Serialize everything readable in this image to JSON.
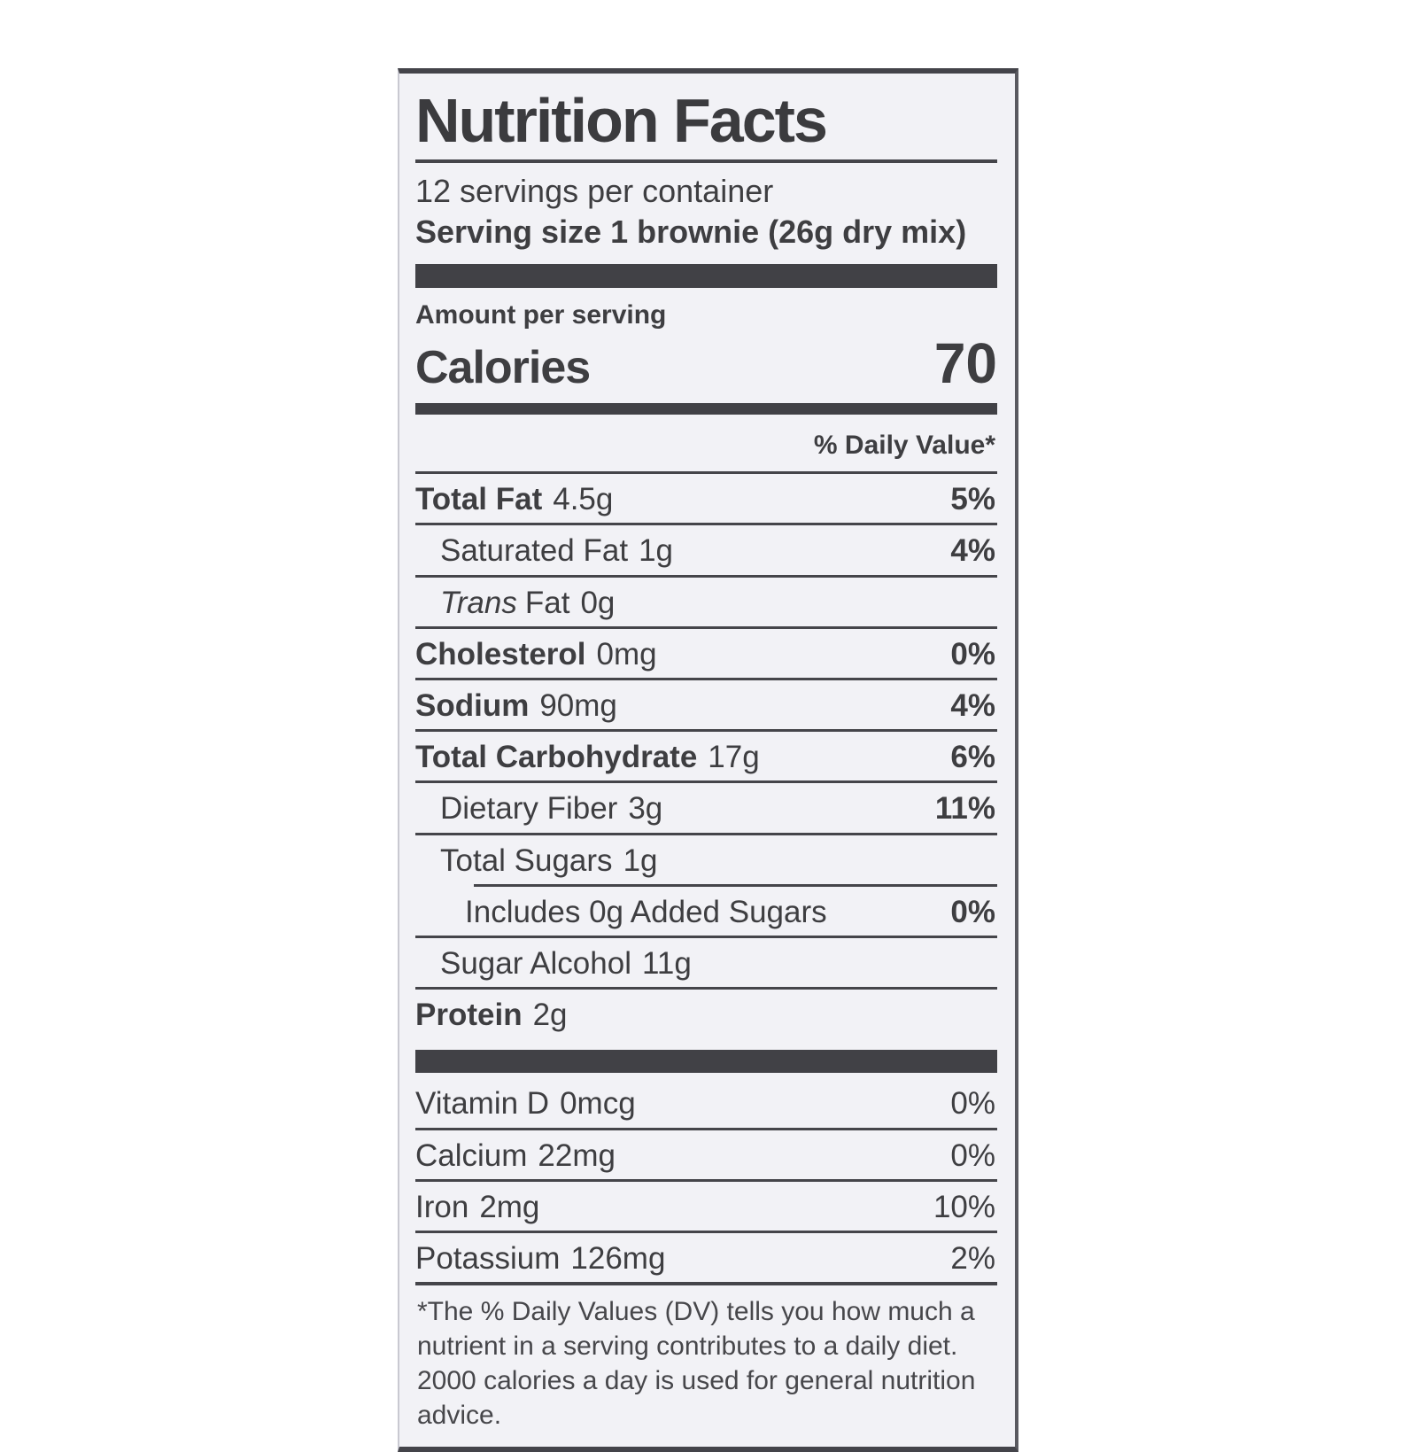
{
  "colors": {
    "ink": "#3e3e41",
    "label_background": "#f2f2f6",
    "page_background": "#ffffff"
  },
  "label": {
    "title": "Nutrition Facts",
    "servings_per_container": "12 servings per container",
    "serving_size_label": "Serving size",
    "serving_size_value": "1 brownie (26g dry mix)",
    "amount_per_serving": "Amount per serving",
    "calories_label": "Calories",
    "calories_value": "70",
    "daily_value_header": "% Daily Value*",
    "nutrients": [
      {
        "name": "Total Fat",
        "amount": "4.5g",
        "dv": "5%"
      },
      {
        "name": "Saturated Fat",
        "amount": "1g",
        "dv": "4%"
      },
      {
        "name_italic": "Trans",
        "name_rest": "Fat",
        "amount": "0g",
        "dv": ""
      },
      {
        "name": "Cholesterol",
        "amount": "0mg",
        "dv": "0%"
      },
      {
        "name": "Sodium",
        "amount": "90mg",
        "dv": "4%"
      },
      {
        "name": "Total Carbohydrate",
        "amount": "17g",
        "dv": "6%"
      },
      {
        "name": "Dietary Fiber",
        "amount": "3g",
        "dv": "11%"
      },
      {
        "name": "Total Sugars",
        "amount": "1g",
        "dv": ""
      },
      {
        "name": "Includes 0g Added Sugars",
        "amount": "",
        "dv": "0%"
      },
      {
        "name": "Sugar Alcohol",
        "amount": "11g",
        "dv": ""
      },
      {
        "name": "Protein",
        "amount": "2g",
        "dv": ""
      }
    ],
    "vitamins": [
      {
        "name": "Vitamin D",
        "amount": "0mcg",
        "dv": "0%"
      },
      {
        "name": "Calcium",
        "amount": "22mg",
        "dv": "0%"
      },
      {
        "name": "Iron",
        "amount": "2mg",
        "dv": "10%"
      },
      {
        "name": "Potassium",
        "amount": "126mg",
        "dv": "2%"
      }
    ],
    "footnote": "*The % Daily Values (DV) tells you how much a nutrient in a serving contributes to a daily diet. 2000 calories a day is used for general nutrition advice."
  }
}
